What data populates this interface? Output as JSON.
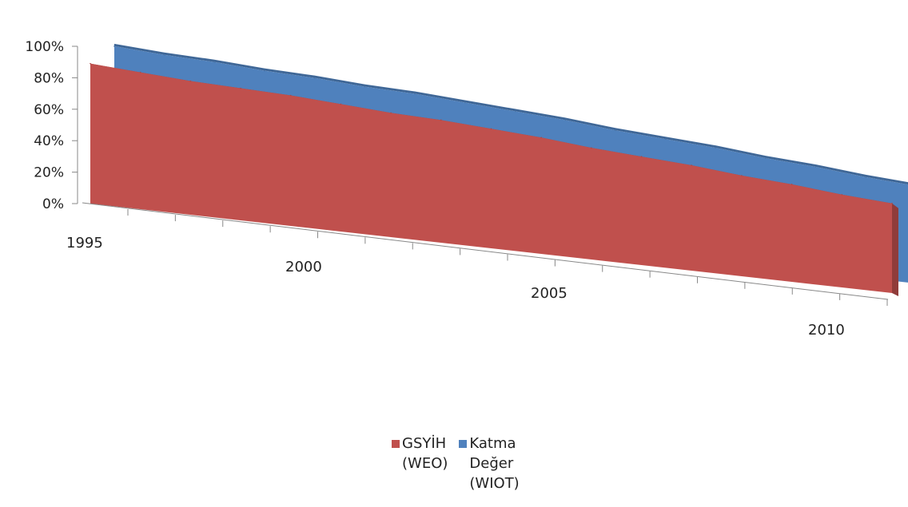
{
  "chart_data": {
    "type": "area",
    "style": "3d-area",
    "x": [
      1995,
      1996,
      1997,
      1998,
      1999,
      2000,
      2001,
      2002,
      2003,
      2004,
      2005,
      2006,
      2007,
      2008,
      2009,
      2010,
      2011
    ],
    "x_tick_labels": [
      "1995",
      "2000",
      "2005",
      "2010"
    ],
    "y_tick_labels": [
      "0%",
      "20%",
      "40%",
      "60%",
      "80%",
      "100%"
    ],
    "ylim": [
      0,
      100
    ],
    "series": [
      {
        "name": "GSYİH (WEO)",
        "color": "#c0504d",
        "values": [
          89,
          87,
          85,
          84,
          83,
          81,
          79,
          78,
          76,
          74,
          71,
          69,
          67,
          64,
          62,
          59,
          57
        ]
      },
      {
        "name": "Katma Değer (WIOT)",
        "color": "#4f81bd",
        "values": [
          94,
          92,
          91,
          89,
          88,
          86,
          85,
          83,
          81,
          79,
          76,
          74,
          72,
          69,
          67,
          64,
          62
        ]
      }
    ],
    "legend": {
      "position": "bottom",
      "items": [
        {
          "lines": [
            "GSYİH",
            "(WEO)"
          ],
          "color": "#c0504d"
        },
        {
          "lines": [
            "Katma",
            "Değer",
            "(WIOT)"
          ],
          "color": "#4f81bd"
        }
      ]
    }
  }
}
